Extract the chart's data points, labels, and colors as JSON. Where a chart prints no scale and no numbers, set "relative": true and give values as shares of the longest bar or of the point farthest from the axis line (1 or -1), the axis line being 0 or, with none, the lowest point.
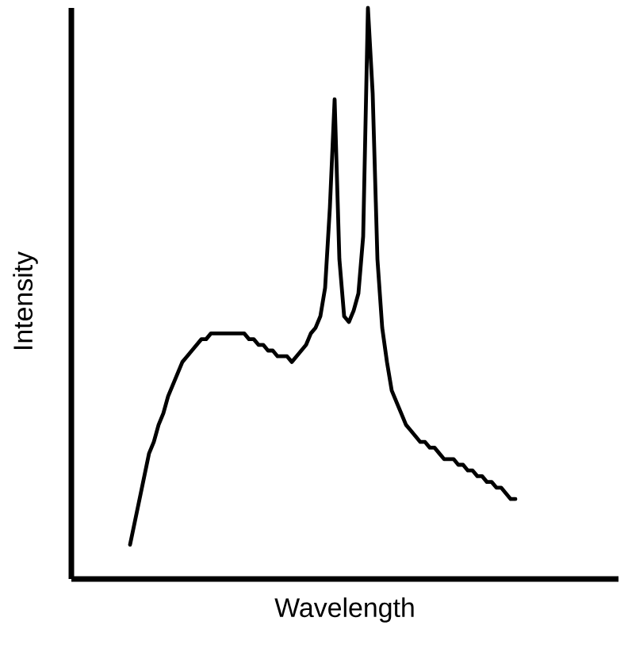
{
  "chart_data": {
    "type": "line",
    "relative": true,
    "xlabel": "Wavelength",
    "ylabel": "Intensity",
    "tick_labels": false,
    "categories": [
      null,
      null,
      null,
      null,
      null,
      null,
      null,
      null,
      null,
      null,
      null,
      null,
      null,
      null,
      null,
      null,
      null,
      null,
      null,
      null,
      null,
      null,
      null,
      null,
      null,
      null,
      null,
      null,
      null,
      null,
      null,
      null,
      null,
      null,
      null,
      null,
      null,
      null,
      null,
      null,
      null,
      null,
      null,
      null,
      null,
      null,
      null,
      null,
      null,
      null,
      null,
      null,
      null,
      null,
      null,
      null,
      null,
      null,
      null,
      null,
      null,
      null,
      null,
      null,
      null,
      null,
      null,
      null,
      null,
      null,
      null,
      null,
      null,
      null,
      null,
      null,
      null,
      null,
      null,
      null,
      null,
      null
    ],
    "series": [
      {
        "color": "#000000",
        "values": [
          0.06,
          0.1,
          0.14,
          0.18,
          0.22,
          0.24,
          0.27,
          0.29,
          0.32,
          0.34,
          0.36,
          0.38,
          0.39,
          0.4,
          0.41,
          0.42,
          0.42,
          0.43,
          0.43,
          0.43,
          0.43,
          0.43,
          0.43,
          0.43,
          0.43,
          0.42,
          0.42,
          0.41,
          0.41,
          0.4,
          0.4,
          0.39,
          0.39,
          0.39,
          0.38,
          0.39,
          0.4,
          0.41,
          0.43,
          0.44,
          0.46,
          0.51,
          0.65,
          0.84,
          0.56,
          0.46,
          0.45,
          0.47,
          0.5,
          0.6,
          1.0,
          0.85,
          0.56,
          0.44,
          0.38,
          0.33,
          0.31,
          0.29,
          0.27,
          0.26,
          0.25,
          0.24,
          0.24,
          0.23,
          0.23,
          0.22,
          0.21,
          0.21,
          0.21,
          0.2,
          0.2,
          0.19,
          0.19,
          0.18,
          0.18,
          0.17,
          0.17,
          0.16,
          0.16,
          0.15,
          0.14,
          0.14
        ]
      }
    ]
  }
}
